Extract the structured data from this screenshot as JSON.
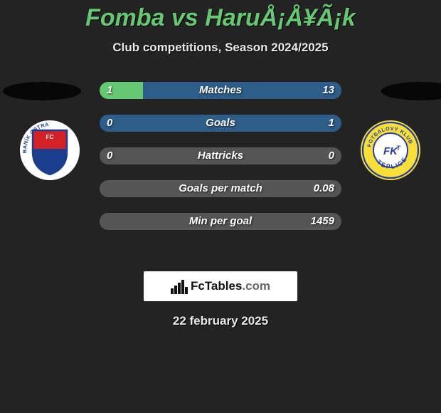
{
  "title": "Fomba vs HaruÅ¡Å¥Ã¡k",
  "subtitle": "Club competitions, Season 2024/2025",
  "date": "22 february 2025",
  "colors": {
    "player1": "#66c873",
    "player2": "#2e5d8a",
    "default": "#505050",
    "full_default": "#555555"
  },
  "stats": [
    {
      "label": "Matches",
      "v1": "1",
      "v2": "13",
      "left_pct": 18,
      "right_pct": 82,
      "mode": "split"
    },
    {
      "label": "Goals",
      "v1": "0",
      "v2": "1",
      "left_pct": 0,
      "right_pct": 100,
      "mode": "p2full"
    },
    {
      "label": "Hattricks",
      "v1": "0",
      "v2": "0",
      "left_pct": 0,
      "right_pct": 0,
      "mode": "neutral"
    },
    {
      "label": "Goals per match",
      "v1": "",
      "v2": "0.08",
      "left_pct": 0,
      "right_pct": 0,
      "mode": "neutral"
    },
    {
      "label": "Min per goal",
      "v1": "",
      "v2": "1459",
      "left_pct": 0,
      "right_pct": 0,
      "mode": "neutral"
    }
  ],
  "branding": {
    "name": "FcTables",
    "domain": ".com"
  },
  "crests": {
    "left": {
      "outer_fill": "#ffffff",
      "shield_stroke": "#1b3e8c",
      "top_fill": "#d42127",
      "bottom_fill": "#1b3e8c",
      "text": "BANÍK OSTRAVA",
      "fc": "FC"
    },
    "right": {
      "outer_fill": "#fadf3a",
      "ring_stroke": "#2a3f9c",
      "center_fill": "#ffffff",
      "text_top": "FOTBALOVÝ KLUB",
      "text_bottom": "TEPLICE",
      "monogram": "FKT"
    }
  }
}
